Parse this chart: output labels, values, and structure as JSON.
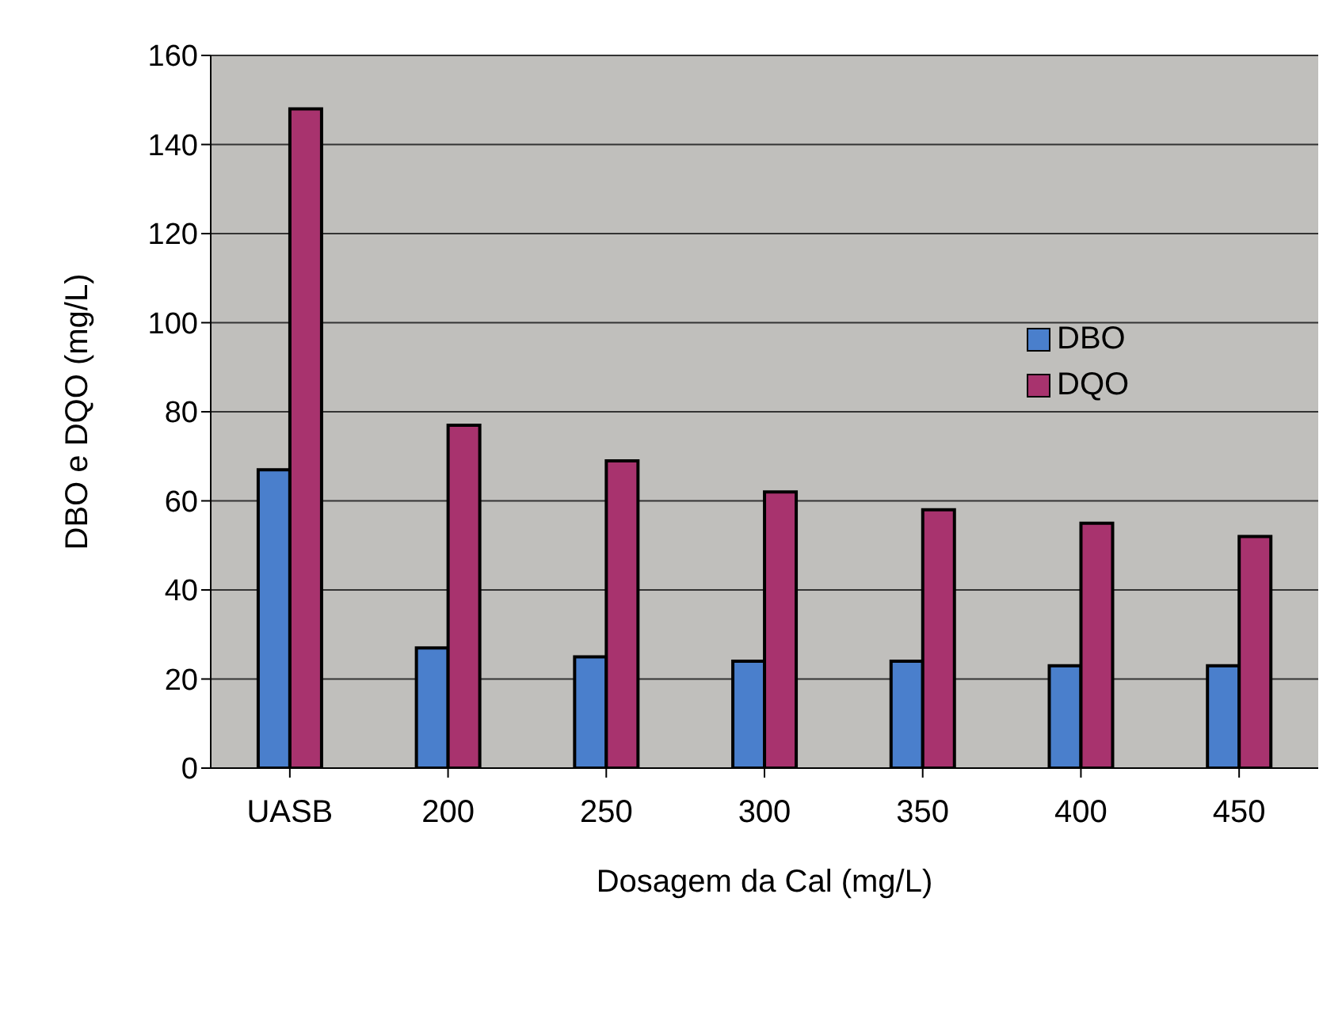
{
  "chart_data": {
    "type": "bar",
    "xlabel": "Dosagem da Cal (mg/L)",
    "ylabel": "DBO e DQO (mg/L)",
    "categories": [
      "UASB",
      "200",
      "250",
      "300",
      "350",
      "400",
      "450"
    ],
    "series": [
      {
        "name": "DBO",
        "color": "#4a7fcc",
        "values": [
          67,
          27,
          25,
          24,
          24,
          23,
          23
        ]
      },
      {
        "name": "DQO",
        "color": "#a8336e",
        "values": [
          148,
          77,
          69,
          62,
          58,
          55,
          52
        ]
      }
    ],
    "ylim": [
      0,
      160
    ],
    "yticks": [
      0,
      20,
      40,
      60,
      80,
      100,
      120,
      140,
      160
    ],
    "grid": "y",
    "legend": "right"
  }
}
